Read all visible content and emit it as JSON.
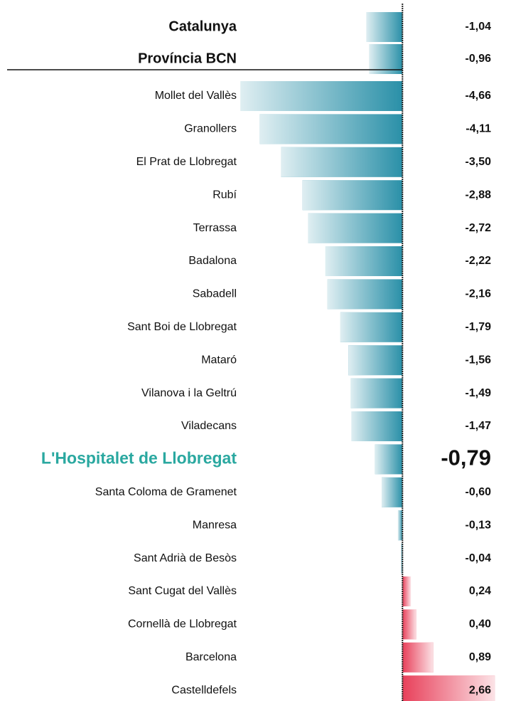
{
  "chart_data": {
    "type": "bar",
    "categories": [
      "Catalunya",
      "Província BCN",
      "Mollet del Vallès",
      "Granollers",
      "El Prat de Llobregat",
      "Rubí",
      "Terrassa",
      "Badalona",
      "Sabadell",
      "Sant Boi de Llobregat",
      "Mataró",
      "Vilanova i la Geltrú",
      "Viladecans",
      "L'Hospitalet de Llobregat",
      "Santa Coloma de Gramenet",
      "Manresa",
      "Sant Adrià de Besòs",
      "Sant Cugat del Vallès",
      "Cornellà de Llobregat",
      "Barcelona",
      "Castelldefels"
    ],
    "values": [
      -1.04,
      -0.96,
      -4.66,
      -4.11,
      -3.5,
      -2.88,
      -2.72,
      -2.22,
      -2.16,
      -1.79,
      -1.56,
      -1.49,
      -1.47,
      -0.79,
      -0.6,
      -0.13,
      -0.04,
      0.24,
      0.4,
      0.89,
      2.66
    ],
    "value_labels": [
      "-1,04",
      "-0,96",
      "-4,66",
      "-4,11",
      "-3,50",
      "-2,88",
      "-2,72",
      "-2,22",
      "-2,16",
      "-1,79",
      "-1,56",
      "-1,49",
      "-1,47",
      "-0,79",
      "-0,60",
      "-0,13",
      "-0,04",
      "0,24",
      "0,40",
      "0,89",
      "2,66"
    ],
    "xlim": [
      -4.8,
      2.8
    ],
    "summary_rows": 2,
    "highlight": "L'Hospitalet de Llobregat",
    "highlight_color": "#2aa8a0",
    "negative_color": "#2a90a8",
    "positive_color": "#e8405a"
  }
}
